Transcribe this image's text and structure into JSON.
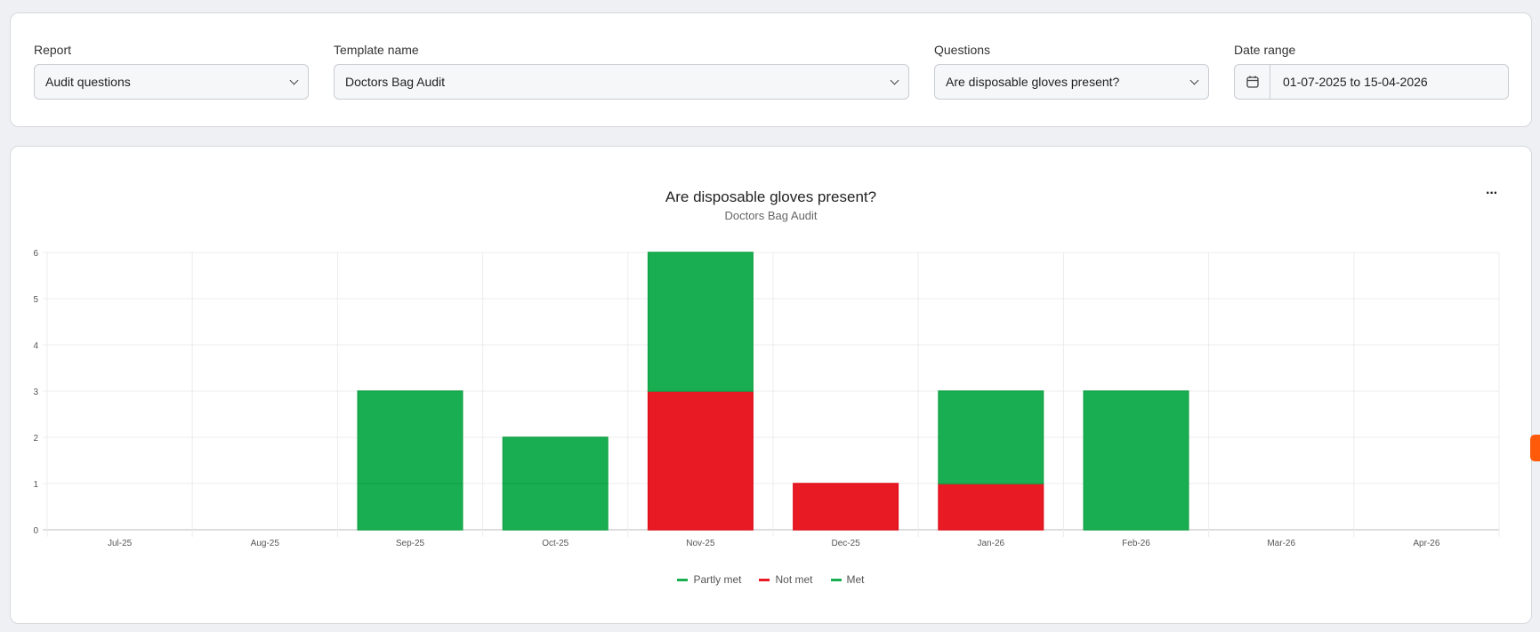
{
  "filters": {
    "report": {
      "label": "Report",
      "value": "Audit questions"
    },
    "template": {
      "label": "Template name",
      "value": "Doctors Bag Audit"
    },
    "questions": {
      "label": "Questions",
      "value": "Are disposable gloves present?"
    },
    "date_range": {
      "label": "Date range",
      "value": "01-07-2025 to 15-04-2026",
      "icon": "calendar-icon"
    }
  },
  "menu_label": "···",
  "chart_data": {
    "type": "bar",
    "stacked": true,
    "title": "Are disposable gloves present?",
    "subtitle": "Doctors Bag Audit",
    "categories": [
      "Jul-25",
      "Aug-25",
      "Sep-25",
      "Oct-25",
      "Nov-25",
      "Dec-25",
      "Jan-26",
      "Feb-26",
      "Mar-26",
      "Apr-26"
    ],
    "series": [
      {
        "name": "Partly met",
        "color": "#1aae52",
        "values": [
          0,
          0,
          1,
          1,
          0,
          0,
          0,
          0,
          0,
          0
        ]
      },
      {
        "name": "Not met",
        "color": "#e81a24",
        "values": [
          0,
          0,
          0,
          0,
          3,
          1,
          1,
          0,
          0,
          0
        ]
      },
      {
        "name": "Met",
        "color": "#1aae52",
        "values": [
          0,
          0,
          2,
          1,
          3,
          0,
          2,
          3,
          0,
          0
        ]
      }
    ],
    "ylim": [
      0,
      6
    ],
    "yticks": [
      0,
      1,
      2,
      3,
      4,
      5,
      6
    ],
    "grid": true,
    "legend": "bottom"
  }
}
